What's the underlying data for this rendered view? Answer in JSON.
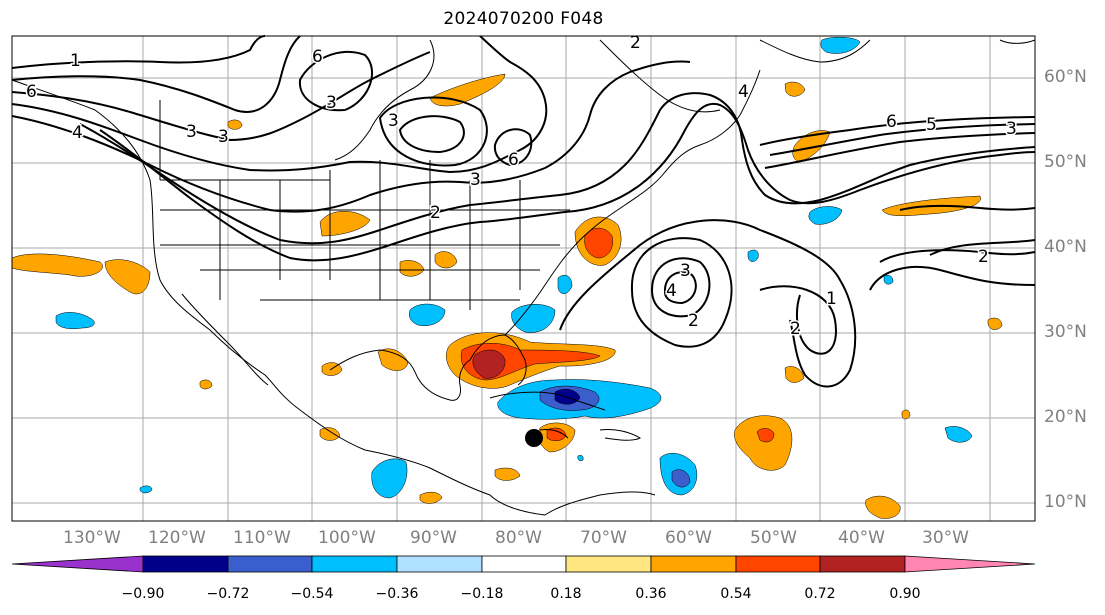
{
  "title": "2024070200 F048",
  "longitude_labels": [
    "130°W",
    "120°W",
    "110°W",
    "100°W",
    "90°W",
    "80°W",
    "70°W",
    "60°W",
    "50°W",
    "40°W",
    "30°W"
  ],
  "latitude_labels": [
    "60°N",
    "50°N",
    "40°N",
    "30°N",
    "20°N",
    "10°N"
  ],
  "contour_labels": [
    "1",
    "6",
    "4",
    "3",
    "3",
    "2",
    "6",
    "3",
    "6",
    "3",
    "3",
    "4",
    "6",
    "5",
    "3",
    "2",
    "3",
    "4",
    "2",
    "2",
    "1",
    "2"
  ],
  "colorbar": {
    "ticks": [
      "−0.90",
      "−0.72",
      "−0.54",
      "−0.36",
      "−0.18",
      "0.18",
      "0.36",
      "0.54",
      "0.72",
      "0.90"
    ],
    "colors": [
      "#9932cc",
      "#00008b",
      "#3a5fcd",
      "#00bfff",
      "#b0e0ff",
      "#ffffff",
      "#ffe680",
      "#ffa500",
      "#ff4500",
      "#b22222",
      "#ff85b3"
    ]
  },
  "storm_marker": "black dot near 78°W 18°N"
}
